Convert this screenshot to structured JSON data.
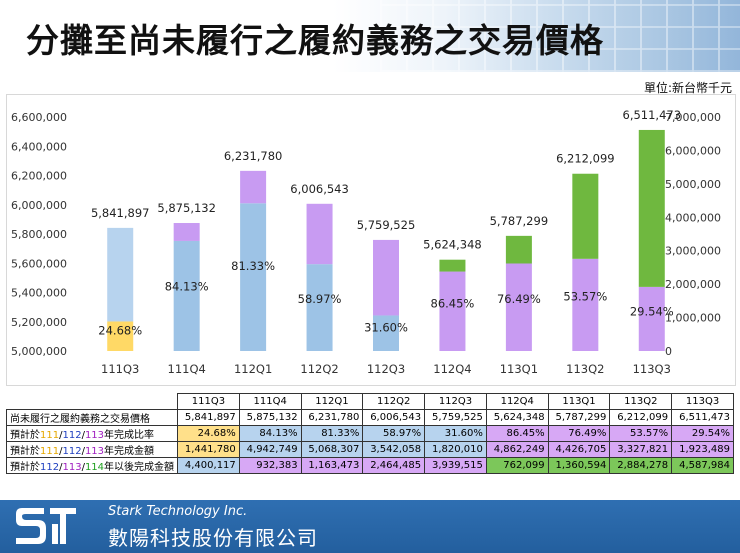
{
  "title": "分攤至尚未履行之履約義務之交易價格",
  "unit": "單位:新台幣千元",
  "chart_data": {
    "type": "bar",
    "categories": [
      "111Q3",
      "111Q4",
      "112Q1",
      "112Q2",
      "112Q3",
      "112Q4",
      "113Q1",
      "113Q2",
      "113Q3"
    ],
    "totals": [
      5841897,
      5875132,
      6231780,
      6006543,
      5759525,
      5624348,
      5787299,
      6212099,
      6511473
    ],
    "total_labels": [
      "5,841,897",
      "5,875,132",
      "6,231,780",
      "6,006,543",
      "5,759,525",
      "5,624,348",
      "5,787,299",
      "6,212,099",
      "6,511,473"
    ],
    "ratio_labels": [
      "24.68%",
      "84.13%",
      "81.33%",
      "58.97%",
      "31.60%",
      "86.45%",
      "76.49%",
      "53.57%",
      "29.54%"
    ],
    "segment_colors": {
      "yellow": "#ffd966",
      "light_blue": "#b7d3ee",
      "blue": "#9dc3e6",
      "purple": "#c89bf2",
      "green": "#6fb83f"
    },
    "y_left": {
      "min": 5000000,
      "max": 6600000,
      "ticks": [
        "5,000,000",
        "5,200,000",
        "5,400,000",
        "5,600,000",
        "5,800,000",
        "6,000,000",
        "6,200,000",
        "6,400,000",
        "6,600,000"
      ]
    },
    "y_right": {
      "min": 0,
      "max": 7000000,
      "ticks": [
        "0",
        "1,000,000",
        "2,000,000",
        "3,000,000",
        "4,000,000",
        "5,000,000",
        "6,000,000",
        "7,000,000"
      ]
    }
  },
  "table": {
    "headers": [
      "111Q3",
      "111Q4",
      "112Q1",
      "112Q2",
      "112Q3",
      "112Q4",
      "113Q1",
      "113Q2",
      "113Q3"
    ],
    "rows": [
      {
        "label": "尚未履行之履約義務之交易價格",
        "values": [
          "5,841,897",
          "5,875,132",
          "6,231,780",
          "6,006,543",
          "5,759,525",
          "5,624,348",
          "5,787,299",
          "6,212,099",
          "6,511,473"
        ]
      },
      {
        "label_prefix": "預計於",
        "y1": "111",
        "y2": "112",
        "y3": "113",
        "label_suffix": "年完成比率",
        "values": [
          "24.68%",
          "84.13%",
          "81.33%",
          "58.97%",
          "31.60%",
          "86.45%",
          "76.49%",
          "53.57%",
          "29.54%"
        ]
      },
      {
        "label_prefix": "預計於",
        "y1": "111",
        "y2": "112",
        "y3": "113",
        "label_suffix": "年完成金額",
        "values": [
          "1,441,780",
          "4,942,749",
          "5,068,307",
          "3,542,058",
          "1,820,010",
          "4,862,249",
          "4,426,705",
          "3,327,821",
          "1,923,489"
        ]
      },
      {
        "label_prefix": "預計於",
        "y1": "112",
        "y2": "113",
        "y3": "114",
        "label_suffix": "年以後完成金額",
        "values": [
          "4,400,117",
          "932,383",
          "1,163,473",
          "2,464,485",
          "3,939,515",
          "762,099",
          "1,360,594",
          "2,884,278",
          "4,587,984"
        ]
      }
    ],
    "year_colors": {
      "c1": "#e6a800",
      "c2": "#2040c0",
      "c3": "#a020c0",
      "c4": "#20a020"
    }
  },
  "footer": {
    "company_en": "Stark Technology Inc.",
    "company_zh": "數陽科技股份有限公司"
  }
}
